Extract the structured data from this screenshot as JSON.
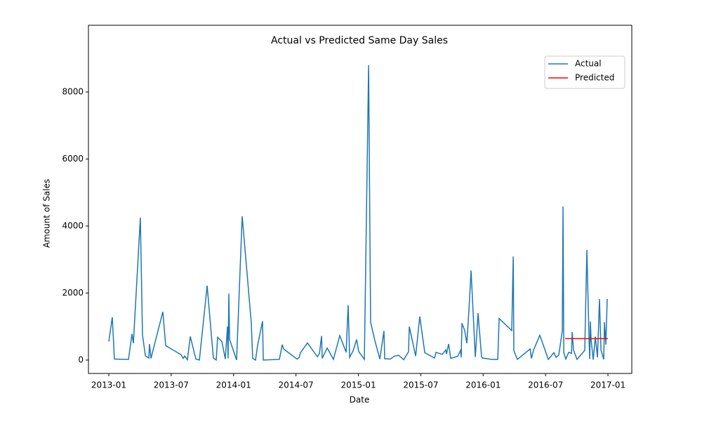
{
  "chart_data": {
    "type": "line",
    "title": "Actual vs Predicted Same Day Sales",
    "x_label": "Date",
    "y_label": "Amount of Sales",
    "xlim": [
      2012.837,
      2017.191
    ],
    "ylim": [
      -400,
      9990
    ],
    "xticks": [
      {
        "value": 2013.0,
        "label": "2013-01"
      },
      {
        "value": 2013.5,
        "label": "2013-07"
      },
      {
        "value": 2014.0,
        "label": "2014-01"
      },
      {
        "value": 2014.5,
        "label": "2014-07"
      },
      {
        "value": 2015.0,
        "label": "2015-01"
      },
      {
        "value": 2015.5,
        "label": "2015-07"
      },
      {
        "value": 2016.0,
        "label": "2016-01"
      },
      {
        "value": 2016.5,
        "label": "2016-07"
      },
      {
        "value": 2017.0,
        "label": "2017-01"
      }
    ],
    "yticks": [
      0,
      2000,
      4000,
      6000,
      8000
    ],
    "legend": "upper right",
    "grid": false,
    "series": [
      {
        "name": "Actual",
        "color": "#1f77b4",
        "x": [
          2013.0,
          2013.028,
          2013.045,
          2013.158,
          2013.186,
          2013.197,
          2013.253,
          2013.27,
          2013.293,
          2013.321,
          2013.326,
          2013.338,
          2013.433,
          2013.456,
          2013.579,
          2013.596,
          2013.608,
          2013.63,
          2013.653,
          2013.698,
          2013.726,
          2013.788,
          2013.838,
          2013.861,
          2013.872,
          2013.906,
          2013.934,
          2013.951,
          2013.956,
          2013.962,
          2013.968,
          2014.024,
          2014.069,
          2014.142,
          2014.153,
          2014.176,
          2014.193,
          2014.232,
          2014.238,
          2014.367,
          2014.39,
          2014.401,
          2014.508,
          2014.525,
          2014.536,
          2014.592,
          2014.671,
          2014.688,
          2014.705,
          2014.71,
          2014.75,
          2014.8,
          2014.851,
          2014.902,
          2014.918,
          2014.93,
          2014.958,
          2014.986,
          2015.003,
          2015.048,
          2015.082,
          2015.098,
          2015.132,
          2015.172,
          2015.205,
          2015.211,
          2015.256,
          2015.29,
          2015.324,
          2015.363,
          2015.402,
          2015.408,
          2015.459,
          2015.492,
          2015.532,
          2015.61,
          2015.622,
          2015.672,
          2015.7,
          2015.706,
          2015.723,
          2015.74,
          2015.796,
          2015.819,
          2015.824,
          2015.83,
          2015.852,
          2015.869,
          2015.886,
          2015.903,
          2015.937,
          2015.959,
          2015.987,
          2015.993,
          2016.072,
          2016.117,
          2016.128,
          2016.229,
          2016.241,
          2016.246,
          2016.274,
          2016.376,
          2016.387,
          2016.404,
          2016.454,
          2016.522,
          2016.567,
          2016.584,
          2016.606,
          2016.634,
          2016.64,
          2016.646,
          2016.662,
          2016.685,
          2016.708,
          2016.713,
          2016.724,
          2016.752,
          2016.814,
          2016.831,
          2016.848,
          2016.854,
          2016.859,
          2016.865,
          2016.882,
          2016.899,
          2016.916,
          2016.932,
          2016.944,
          2016.966,
          2016.972,
          2016.983,
          2016.994
        ],
        "values": [
          550,
          1280,
          30,
          20,
          780,
          500,
          4250,
          750,
          130,
          60,
          480,
          50,
          1440,
          430,
          160,
          50,
          120,
          10,
          700,
          30,
          0,
          2220,
          60,
          0,
          680,
          550,
          30,
          1000,
          50,
          1980,
          620,
          0,
          4290,
          1100,
          50,
          0,
          450,
          1160,
          0,
          20,
          460,
          330,
          30,
          70,
          220,
          510,
          100,
          200,
          720,
          50,
          360,
          20,
          730,
          230,
          1640,
          80,
          280,
          610,
          250,
          20,
          8800,
          1130,
          580,
          30,
          870,
          40,
          30,
          120,
          140,
          10,
          250,
          1000,
          120,
          1300,
          220,
          60,
          230,
          170,
          300,
          180,
          480,
          50,
          110,
          290,
          80,
          1100,
          880,
          500,
          1500,
          2670,
          90,
          1400,
          100,
          60,
          20,
          20,
          1240,
          880,
          3090,
          280,
          20,
          330,
          50,
          300,
          740,
          20,
          220,
          80,
          150,
          870,
          4580,
          220,
          30,
          230,
          200,
          840,
          300,
          20,
          290,
          3290,
          650,
          30,
          1150,
          600,
          10,
          700,
          80,
          1820,
          300,
          20,
          1130,
          460,
          1820
        ]
      },
      {
        "name": "Predicted",
        "color": "#ff0000",
        "x": [
          2016.657,
          2017.0
        ],
        "values": [
          640,
          640
        ]
      }
    ]
  }
}
